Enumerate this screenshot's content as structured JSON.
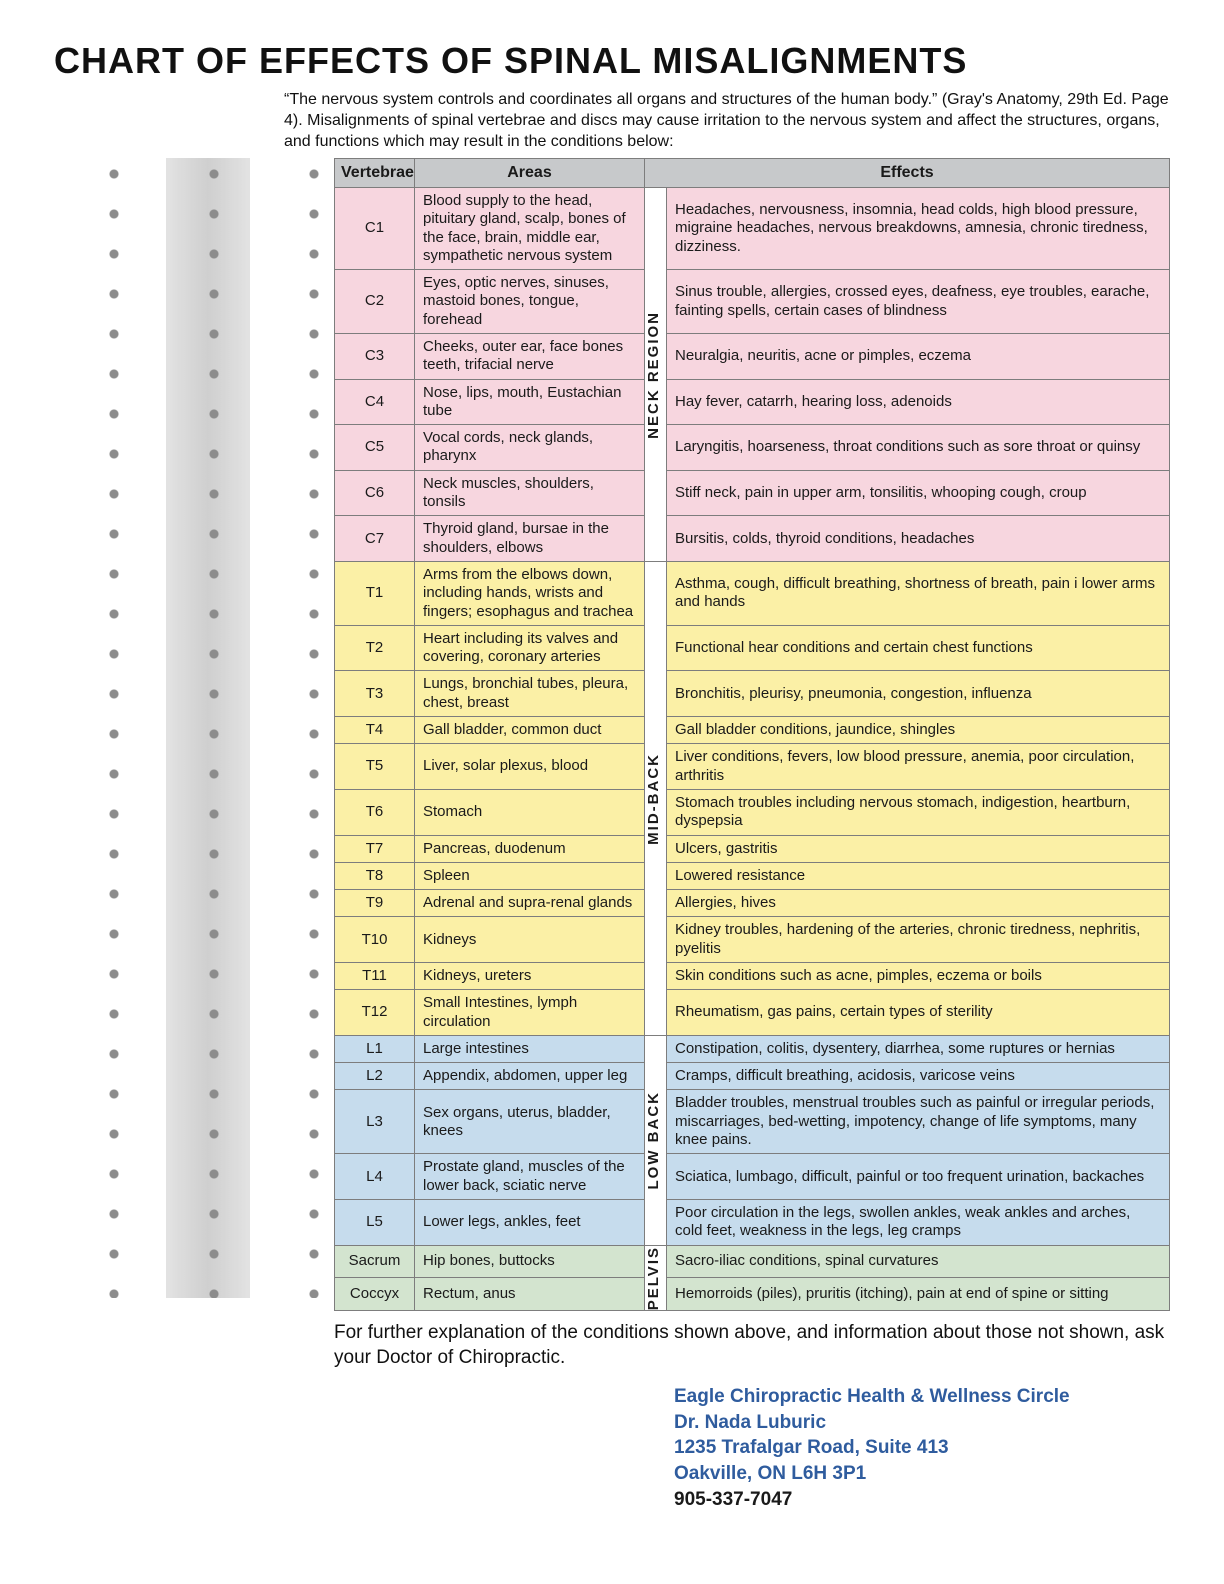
{
  "title": "CHART OF EFFECTS OF SPINAL MISALIGNMENTS",
  "intro": "“The nervous system controls and coordinates all organs and structures of the human body.” (Gray's Anatomy, 29th Ed. Page 4). Misalignments of spinal vertebrae and discs may cause irritation to the nervous system and affect the structures, organs, and functions which may result in the conditions below:",
  "columns": {
    "c0": "Vertebrae",
    "c1": "Areas",
    "c2": "Effects"
  },
  "regions": [
    {
      "label": "NECK REGION",
      "color": "#f7d6df",
      "rows": [
        {
          "v": "C1",
          "a": "Blood supply to the head, pituitary gland, scalp, bones of the face, brain, middle ear, sympathetic nervous system",
          "e": "Headaches, nervousness, insomnia, head colds, high blood pressure, migraine headaches, nervous breakdowns, amnesia, chronic tiredness, dizziness."
        },
        {
          "v": "C2",
          "a": "Eyes, optic nerves, sinuses, mastoid bones, tongue, forehead",
          "e": "Sinus trouble, allergies, crossed eyes, deafness, eye troubles, earache, fainting spells, certain cases of blindness"
        },
        {
          "v": "C3",
          "a": "Cheeks, outer ear, face bones teeth, trifacial nerve",
          "e": "Neuralgia, neuritis, acne or pimples, eczema"
        },
        {
          "v": "C4",
          "a": "Nose, lips, mouth, Eustachian tube",
          "e": "Hay fever, catarrh, hearing loss, adenoids"
        },
        {
          "v": "C5",
          "a": "Vocal cords, neck glands, pharynx",
          "e": "Laryngitis, hoarseness, throat conditions such as sore throat or quinsy"
        },
        {
          "v": "C6",
          "a": "Neck muscles, shoulders, tonsils",
          "e": "Stiff neck, pain in upper arm, tonsilitis, whooping cough, croup"
        },
        {
          "v": "C7",
          "a": "Thyroid gland, bursae in the shoulders, elbows",
          "e": "Bursitis, colds, thyroid conditions, headaches"
        }
      ]
    },
    {
      "label": "MID-BACK",
      "color": "#fbf0a6",
      "rows": [
        {
          "v": "T1",
          "a": "Arms from the elbows down, including hands, wrists and fingers; esophagus and trachea",
          "e": "Asthma, cough, difficult breathing, shortness of breath, pain i lower arms and hands"
        },
        {
          "v": "T2",
          "a": "Heart including its valves and covering, coronary arteries",
          "e": "Functional hear conditions and certain chest functions"
        },
        {
          "v": "T3",
          "a": "Lungs, bronchial tubes, pleura, chest, breast",
          "e": "Bronchitis, pleurisy, pneumonia, congestion, influenza"
        },
        {
          "v": "T4",
          "a": "Gall bladder, common duct",
          "e": "Gall bladder conditions, jaundice, shingles"
        },
        {
          "v": "T5",
          "a": "Liver, solar plexus, blood",
          "e": "Liver conditions, fevers, low blood pressure, anemia, poor circulation, arthritis"
        },
        {
          "v": "T6",
          "a": "Stomach",
          "e": "Stomach troubles including nervous stomach, indigestion, heartburn, dyspepsia"
        },
        {
          "v": "T7",
          "a": "Pancreas, duodenum",
          "e": "Ulcers, gastritis"
        },
        {
          "v": "T8",
          "a": "Spleen",
          "e": "Lowered resistance"
        },
        {
          "v": "T9",
          "a": "Adrenal and supra-renal glands",
          "e": "Allergies, hives"
        },
        {
          "v": "T10",
          "a": "Kidneys",
          "e": "Kidney troubles, hardening of the arteries, chronic tiredness, nephritis, pyelitis"
        },
        {
          "v": "T11",
          "a": "Kidneys, ureters",
          "e": "Skin conditions such as acne, pimples, eczema or boils"
        },
        {
          "v": "T12",
          "a": "Small Intestines, lymph circulation",
          "e": "Rheumatism, gas pains, certain types of sterility"
        }
      ]
    },
    {
      "label": "LOW BACK",
      "color": "#c6dced",
      "rows": [
        {
          "v": "L1",
          "a": "Large intestines",
          "e": "Constipation, colitis, dysentery, diarrhea, some ruptures or hernias"
        },
        {
          "v": "L2",
          "a": "Appendix, abdomen, upper leg",
          "e": "Cramps, difficult breathing, acidosis, varicose veins"
        },
        {
          "v": "L3",
          "a": "Sex organs, uterus, bladder, knees",
          "e": "Bladder troubles, menstrual troubles such as painful or irregular periods, miscarriages, bed-wetting, impotency, change of life symptoms, many knee pains."
        },
        {
          "v": "L4",
          "a": "Prostate gland, muscles of the lower back, sciatic nerve",
          "e": "Sciatica, lumbago, difficult, painful or too frequent urination, backaches"
        },
        {
          "v": "L5",
          "a": "Lower legs, ankles, feet",
          "e": "Poor circulation in the legs, swollen ankles, weak ankles and arches, cold feet, weakness in the legs, leg cramps"
        }
      ]
    },
    {
      "label": "PELVIS",
      "color": "#d3e4cf",
      "rows": [
        {
          "v": "Sacrum",
          "a": "Hip bones, buttocks",
          "e": "Sacro-iliac conditions, spinal curvatures"
        },
        {
          "v": "Coccyx",
          "a": "Rectum, anus",
          "e": "Hemorroids (piles), pruritis (itching), pain at end of spine or sitting"
        }
      ]
    }
  ],
  "footer_note": "For further explanation of the conditions shown above, and information about those not shown, ask your Doctor of Chiropractic.",
  "contact": {
    "line1": "Eagle Chiropractic Health & Wellness Circle",
    "line2": "Dr. Nada Luburic",
    "line3": "1235 Trafalgar Road, Suite 413",
    "line4": "Oakville, ON  L6H 3P1",
    "line5": "905-337-7047"
  }
}
